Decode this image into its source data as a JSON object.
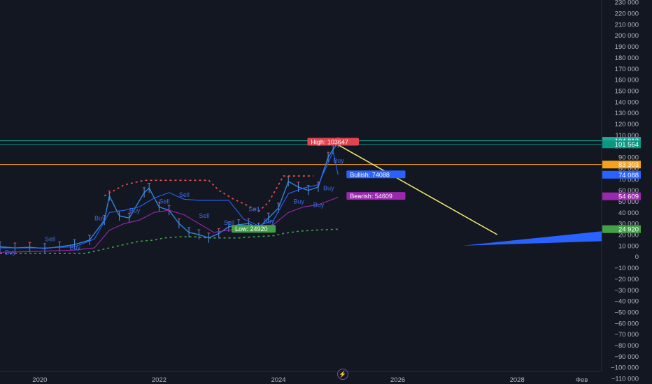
{
  "chart_data": {
    "type": "line",
    "y_axis": {
      "ticks": [
        230000,
        220000,
        210000,
        200000,
        190000,
        180000,
        170000,
        160000,
        150000,
        140000,
        130000,
        120000,
        110000,
        100000,
        90000,
        80000,
        70000,
        60000,
        50000,
        40000,
        30000,
        20000,
        10000,
        0,
        -10000,
        -20000,
        -30000,
        -40000,
        -50000,
        -60000,
        -70000,
        -80000,
        -90000,
        -100000,
        -110000
      ],
      "tick_labels": [
        "230 000",
        "220 000",
        "210 000",
        "200 000",
        "190 000",
        "180 000",
        "170 000",
        "160 000",
        "150 000",
        "140 000",
        "130 000",
        "120 000",
        "110 000",
        "100 000",
        "90 000",
        "80 000",
        "70 000",
        "60 000",
        "50 000",
        "40 000",
        "30 000",
        "20 000",
        "10 000",
        "0",
        "−10 000",
        "−20 000",
        "−30 000",
        "−40 000",
        "−50 000",
        "−60 000",
        "−70 000",
        "−80 000",
        "−90 000",
        "−100 000",
        "−110 000"
      ],
      "range": [
        -115000,
        232000
      ],
      "position": "right"
    },
    "x_axis": {
      "tick_labels": [
        "2020",
        "2022",
        "2024",
        "2026",
        "2028",
        "Фев"
      ],
      "tick_dates": [
        "2020-01",
        "2022-01",
        "2024-01",
        "2026-01",
        "2028-01",
        "2029-02"
      ],
      "range": [
        "2019-05",
        "2029-06"
      ]
    },
    "price_tags": [
      {
        "label": "104 813",
        "value": 104813,
        "color": "#26a69a"
      },
      {
        "label": "101 564",
        "value": 101564,
        "color": "#089981"
      },
      {
        "label": "83 303",
        "value": 83303,
        "color": "#f7a21b"
      },
      {
        "label": "74 088",
        "value": 74088,
        "color": "#2962ff"
      },
      {
        "label": "54 609",
        "value": 54609,
        "color": "#9c27b0"
      },
      {
        "label": "24 920",
        "value": 24920,
        "color": "#43a047"
      }
    ],
    "horizontal_lines": [
      {
        "value": 104813,
        "color": "#26a69a"
      },
      {
        "value": 101564,
        "color": "#089981"
      },
      {
        "value": 83303,
        "color": "#f7a21b"
      }
    ],
    "annotations": [
      {
        "text": "High: 103647",
        "value": 103647,
        "date": "2024-12",
        "color": "#e0454f"
      },
      {
        "text": "Bullish: 74088",
        "value": 74088,
        "date": "2025-01",
        "color": "#2962ff"
      },
      {
        "text": "Bearish: 54609",
        "value": 54609,
        "date": "2025-01",
        "color": "#9c27b0"
      },
      {
        "text": "Low: 24920",
        "value": 24920,
        "date": "2023-08",
        "color": "#43a047"
      }
    ],
    "signal_labels": [
      {
        "text": "Buy",
        "date": "2019-06",
        "value": 2000
      },
      {
        "text": "Sell",
        "date": "2020-02",
        "value": 14000
      },
      {
        "text": "Buy",
        "date": "2020-07",
        "value": 6500
      },
      {
        "text": "Buy",
        "date": "2020-12",
        "value": 33000
      },
      {
        "text": "Buy",
        "date": "2021-07",
        "value": 40000
      },
      {
        "text": "Sell",
        "date": "2022-01",
        "value": 48000
      },
      {
        "text": "Sell",
        "date": "2022-05",
        "value": 54000
      },
      {
        "text": "Sell",
        "date": "2022-09",
        "value": 35000
      },
      {
        "text": "Sell",
        "date": "2023-02",
        "value": 29000
      },
      {
        "text": "Sell",
        "date": "2023-07",
        "value": 41000
      },
      {
        "text": "Buy",
        "date": "2023-10",
        "value": 30000
      },
      {
        "text": "Buy",
        "date": "2024-04",
        "value": 48000
      },
      {
        "text": "Buy",
        "date": "2024-08",
        "value": 45000
      },
      {
        "text": "Buy",
        "date": "2024-10",
        "value": 60000
      },
      {
        "text": "Buy",
        "date": "2024-12",
        "value": 85000
      }
    ],
    "series": [
      {
        "style": "price",
        "color": "#2e86de",
        "x": [
          "2019-05",
          "2019-08",
          "2019-11",
          "2020-02",
          "2020-05",
          "2020-08",
          "2020-11",
          "2021-02",
          "2021-03",
          "2021-05",
          "2021-07",
          "2021-10",
          "2021-11",
          "2022-01",
          "2022-03",
          "2022-05",
          "2022-07",
          "2022-09",
          "2022-11",
          "2023-01",
          "2023-03",
          "2023-05",
          "2023-07",
          "2023-09",
          "2023-11",
          "2024-01",
          "2024-03",
          "2024-05",
          "2024-07",
          "2024-09",
          "2024-11",
          "2024-12",
          "2025-01"
        ],
        "y": [
          9000,
          8000,
          8500,
          7500,
          9000,
          11000,
          15000,
          33000,
          55000,
          37000,
          35000,
          58000,
          62000,
          45000,
          42000,
          30000,
          22000,
          20000,
          17000,
          21000,
          27000,
          29000,
          30000,
          26000,
          35000,
          44000,
          68000,
          63000,
          60000,
          63000,
          90000,
          97000,
          103000
        ]
      },
      {
        "style": "trend",
        "color": "#2962ff",
        "x": [
          "2019-05",
          "2020-02",
          "2020-08",
          "2020-12",
          "2021-03",
          "2021-06",
          "2021-09",
          "2021-12",
          "2022-03",
          "2022-06",
          "2022-09",
          "2022-12",
          "2023-03",
          "2023-06",
          "2023-09",
          "2023-12",
          "2024-03",
          "2024-06",
          "2024-09",
          "2024-12",
          "2025-01"
        ],
        "y": [
          8000,
          8000,
          9000,
          16000,
          40000,
          42000,
          45000,
          53000,
          58000,
          52000,
          51000,
          51000,
          51000,
          34000,
          28000,
          33000,
          57000,
          62000,
          65000,
          95000,
          74000
        ]
      },
      {
        "style": "trend",
        "color": "#9c27b0",
        "x": [
          "2019-05",
          "2020-02",
          "2020-08",
          "2020-12",
          "2021-03",
          "2021-06",
          "2021-09",
          "2021-12",
          "2022-03",
          "2022-06",
          "2022-09",
          "2022-12",
          "2023-03",
          "2023-06",
          "2023-09",
          "2023-12",
          "2024-03",
          "2024-06",
          "2024-09",
          "2024-12",
          "2025-01"
        ],
        "y": [
          4000,
          5000,
          6000,
          8000,
          24000,
          30000,
          33000,
          40000,
          42000,
          38000,
          30000,
          22000,
          24000,
          25000,
          24000,
          29000,
          40000,
          45000,
          47000,
          52000,
          54000
        ]
      },
      {
        "style": "dashed",
        "color": "#ef5350",
        "x": [
          "2021-02",
          "2021-06",
          "2021-10",
          "2022-02",
          "2022-06",
          "2022-08",
          "2022-11",
          "2023-01",
          "2023-04",
          "2023-06",
          "2023-09",
          "2023-11",
          "2024-02",
          "2024-05",
          "2024-08"
        ],
        "y": [
          55000,
          65000,
          69000,
          69000,
          69000,
          69000,
          69000,
          60000,
          52000,
          48000,
          41000,
          49000,
          73000,
          73000,
          73000
        ]
      },
      {
        "style": "dashed",
        "color": "#43a047",
        "x": [
          "2019-05",
          "2019-10",
          "2020-02",
          "2020-06",
          "2020-10",
          "2020-12",
          "2021-03",
          "2021-06",
          "2021-09",
          "2021-12",
          "2022-02",
          "2022-05",
          "2022-08",
          "2022-11",
          "2023-02",
          "2023-05",
          "2023-08",
          "2023-12",
          "2024-02",
          "2024-05",
          "2024-08",
          "2025-01"
        ],
        "y": [
          3000,
          3000,
          3000,
          3000,
          3000,
          5000,
          8000,
          11000,
          14000,
          15000,
          17000,
          18000,
          18000,
          17000,
          17000,
          17000,
          18000,
          19000,
          21000,
          23000,
          24000,
          24900
        ]
      },
      {
        "style": "projection",
        "color": "#f3e970",
        "x": [
          "2024-12",
          "2027-09"
        ],
        "y": [
          103647,
          20000
        ]
      }
    ],
    "wedge": {
      "color": "#2962ff",
      "points": [
        [
          "2027-02",
          10000
        ],
        [
          "2029-06",
          23000
        ],
        [
          "2029-06",
          14000
        ]
      ]
    },
    "grid": false,
    "logo_glyph": "⚡"
  }
}
